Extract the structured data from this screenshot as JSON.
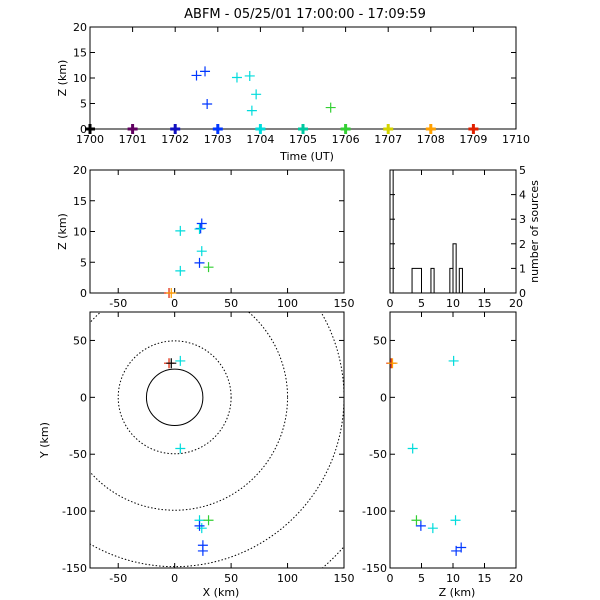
{
  "chart_data": [
    {
      "type": "scatter",
      "panel": "time-height",
      "title": "ABFM - 05/25/01 17:00:00 - 17:09:59",
      "xlabel": "Time (UT)",
      "ylabel": "Z (km)",
      "xlim": [
        1700,
        1710
      ],
      "ylim": [
        0,
        20
      ],
      "xticks": [
        "1700",
        "1701",
        "1702",
        "1703",
        "1704",
        "1705",
        "1706",
        "1707",
        "1708",
        "1709",
        "1710"
      ],
      "yticks": [
        "0",
        "5",
        "10",
        "15",
        "20"
      ],
      "grid": false,
      "points": [
        {
          "x": 1702.5,
          "y": 10.5,
          "color": "#0037ff"
        },
        {
          "x": 1702.7,
          "y": 11.3,
          "color": "#0037ff"
        },
        {
          "x": 1702.75,
          "y": 4.9,
          "color": "#0037ff"
        },
        {
          "x": 1703.45,
          "y": 10.1,
          "color": "#00dcdc"
        },
        {
          "x": 1703.75,
          "y": 10.4,
          "color": "#00dcdc"
        },
        {
          "x": 1703.9,
          "y": 6.8,
          "color": "#00dcdc"
        },
        {
          "x": 1703.8,
          "y": 3.6,
          "color": "#00dcdc"
        },
        {
          "x": 1705.65,
          "y": 4.2,
          "color": "#34cf34"
        }
      ],
      "baseline_markers": [
        {
          "x": 1700.0,
          "color": "#000000"
        },
        {
          "x": 1701.0,
          "color": "#600060"
        },
        {
          "x": 1702.0,
          "color": "#1010c0"
        },
        {
          "x": 1703.0,
          "color": "#0037ff"
        },
        {
          "x": 1704.0,
          "color": "#00dcdc"
        },
        {
          "x": 1705.0,
          "color": "#00c8a0"
        },
        {
          "x": 1706.0,
          "color": "#34cf34"
        },
        {
          "x": 1707.0,
          "color": "#d4d400"
        },
        {
          "x": 1708.0,
          "color": "#ffa000"
        },
        {
          "x": 1709.0,
          "color": "#e02000"
        }
      ]
    },
    {
      "type": "scatter",
      "panel": "x-z",
      "xlim": [
        -75,
        150
      ],
      "ylim": [
        0,
        20
      ],
      "ylabel": "Z (km)",
      "xticks": [
        "-50",
        "0",
        "50",
        "100",
        "150"
      ],
      "yticks": [
        "0",
        "5",
        "10",
        "15",
        "20"
      ],
      "points": [
        {
          "x": 24,
          "y": 11.3,
          "color": "#0037ff"
        },
        {
          "x": 23,
          "y": 10.5,
          "color": "#0037ff"
        },
        {
          "x": 22,
          "y": 4.9,
          "color": "#0037ff"
        },
        {
          "x": 5,
          "y": 10.1,
          "color": "#00dcdc"
        },
        {
          "x": 22,
          "y": 10.4,
          "color": "#00dcdc"
        },
        {
          "x": 24,
          "y": 6.8,
          "color": "#00dcdc"
        },
        {
          "x": 5,
          "y": 3.6,
          "color": "#00dcdc"
        },
        {
          "x": 30,
          "y": 4.2,
          "color": "#34cf34"
        },
        {
          "x": -5,
          "y": 0,
          "color": "#e02000"
        },
        {
          "x": -3,
          "y": 0,
          "color": "#ffa000"
        }
      ]
    },
    {
      "type": "bar",
      "panel": "height-histogram",
      "ylabel": "number of sources",
      "xlim": [
        0,
        20
      ],
      "ylim": [
        0,
        5
      ],
      "xticks": [
        "0",
        "5",
        "10",
        "15",
        "20"
      ],
      "yticks": [
        "0",
        "1",
        "2",
        "3",
        "4",
        "5"
      ],
      "bins": [
        {
          "x0": 0,
          "x1": 0.5,
          "count": 5
        },
        {
          "x0": 3.5,
          "x1": 5,
          "count": 1
        },
        {
          "x0": 6.5,
          "x1": 7,
          "count": 1
        },
        {
          "x0": 9.5,
          "x1": 10,
          "count": 1
        },
        {
          "x0": 10,
          "x1": 10.5,
          "count": 2
        },
        {
          "x0": 11,
          "x1": 11.5,
          "count": 1
        }
      ]
    },
    {
      "type": "scatter",
      "panel": "plan-view",
      "xlabel": "X (km)",
      "ylabel": "Y (km)",
      "xlim": [
        -75,
        150
      ],
      "ylim": [
        -150,
        75
      ],
      "xticks": [
        "-50",
        "0",
        "50",
        "100",
        "150"
      ],
      "yticks": [
        "-150",
        "-100",
        "-50",
        "0",
        "50"
      ],
      "range_rings": [
        {
          "radius": 25,
          "style": "solid"
        },
        {
          "radius": 50,
          "style": "dotted"
        },
        {
          "radius": 100,
          "style": "dotted"
        },
        {
          "radius": 150,
          "style": "dotted"
        },
        {
          "radius": 200,
          "style": "dotted"
        }
      ],
      "points": [
        {
          "x": -5,
          "y": 30,
          "color": "#e02000"
        },
        {
          "x": -3,
          "y": 30,
          "color": "#000000"
        },
        {
          "x": 5,
          "y": 32,
          "color": "#00dcdc"
        },
        {
          "x": 5,
          "y": -45,
          "color": "#00dcdc"
        },
        {
          "x": 22,
          "y": -108,
          "color": "#00dcdc"
        },
        {
          "x": 24,
          "y": -115,
          "color": "#00dcdc"
        },
        {
          "x": 30,
          "y": -108,
          "color": "#34cf34"
        },
        {
          "x": 22,
          "y": -113,
          "color": "#0037ff"
        },
        {
          "x": 25,
          "y": -130,
          "color": "#0037ff"
        },
        {
          "x": 25,
          "y": -135,
          "color": "#0037ff"
        }
      ]
    },
    {
      "type": "scatter",
      "panel": "z-y",
      "xlabel": "Z (km)",
      "xlim": [
        0,
        20
      ],
      "ylim": [
        -150,
        75
      ],
      "xticks": [
        "0",
        "5",
        "10",
        "15",
        "20"
      ],
      "yticks": [
        "-150",
        "-100",
        "-50",
        "0",
        "50"
      ],
      "points": [
        {
          "x": 0.2,
          "y": 30,
          "color": "#e02000"
        },
        {
          "x": 0.4,
          "y": 30,
          "color": "#ffa000"
        },
        {
          "x": 10.1,
          "y": 32,
          "color": "#00dcdc"
        },
        {
          "x": 3.6,
          "y": -45,
          "color": "#00dcdc"
        },
        {
          "x": 4.2,
          "y": -108,
          "color": "#34cf34"
        },
        {
          "x": 4.9,
          "y": -113,
          "color": "#0037ff"
        },
        {
          "x": 6.8,
          "y": -115,
          "color": "#00dcdc"
        },
        {
          "x": 10.4,
          "y": -108,
          "color": "#00dcdc"
        },
        {
          "x": 10.5,
          "y": -135,
          "color": "#0037ff"
        },
        {
          "x": 11.3,
          "y": -132,
          "color": "#0037ff"
        }
      ]
    }
  ]
}
